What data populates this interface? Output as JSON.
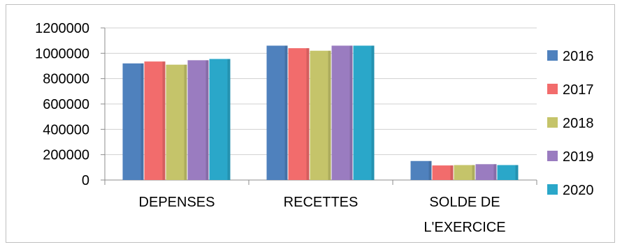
{
  "chart_data": {
    "type": "bar",
    "categories": [
      "DEPENSES",
      "RECETTES",
      "SOLDE DE L'EXERCICE"
    ],
    "category_lines": [
      [
        "DEPENSES"
      ],
      [
        "RECETTES"
      ],
      [
        "SOLDE DE",
        "L'EXERCICE"
      ]
    ],
    "series": [
      {
        "name": "2016",
        "color": "#4f81bd",
        "values": [
          920000,
          1060000,
          150000
        ]
      },
      {
        "name": "2017",
        "color": "#f26c6c",
        "values": [
          935000,
          1040000,
          115000
        ]
      },
      {
        "name": "2018",
        "color": "#c5c46a",
        "values": [
          910000,
          1020000,
          118000
        ]
      },
      {
        "name": "2019",
        "color": "#9a7cc0",
        "values": [
          945000,
          1060000,
          125000
        ]
      },
      {
        "name": "2020",
        "color": "#2aa7c9",
        "values": [
          955000,
          1060000,
          118000
        ]
      }
    ],
    "yticks": [
      "1200000",
      "1000000",
      "800000",
      "600000",
      "400000",
      "200000",
      "0"
    ],
    "ylim": [
      0,
      1200000
    ],
    "grid": true,
    "legend_position": "right",
    "title": "",
    "xlabel": "",
    "ylabel": ""
  }
}
